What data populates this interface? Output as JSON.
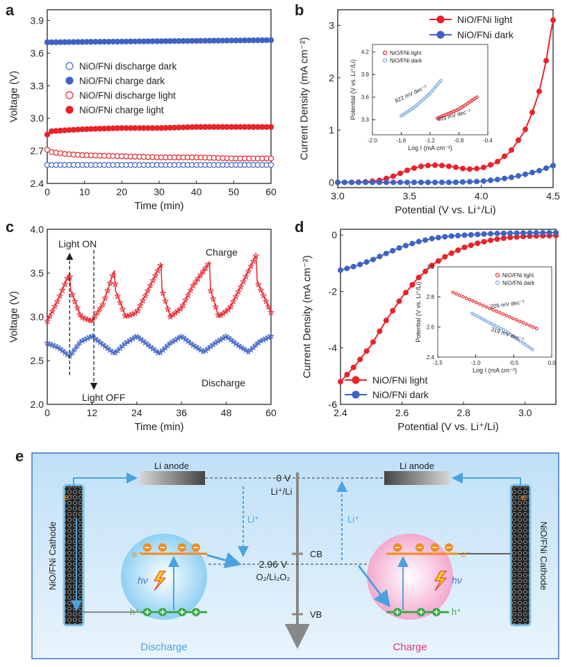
{
  "panels": {
    "a": "a",
    "b": "b",
    "c": "c",
    "d": "d",
    "e": "e"
  },
  "colors": {
    "red": "#e8232a",
    "blue": "#3f63c4",
    "lightblue": "#7aa6e0",
    "orange": "#f28a1e",
    "green": "#3aa64a",
    "cyan": "#4aa3df"
  },
  "chart_data": [
    {
      "panel": "a",
      "type": "scatter",
      "xlabel": "Time (min)",
      "ylabel": "Voltage (V)",
      "xlim": [
        0,
        60
      ],
      "ylim": [
        2.4,
        4.0
      ],
      "xticks": [
        "0",
        "10",
        "20",
        "30",
        "40",
        "50",
        "60"
      ],
      "yticks": [
        "2.4",
        "2.7",
        "3.0",
        "3.3",
        "3.6",
        "3.9"
      ],
      "legend": "center-left",
      "series": [
        {
          "name": "NiO/FNi discharge dark",
          "marker": "open",
          "color": "#3f63c4",
          "x": [
            0,
            60
          ],
          "y": [
            2.57,
            2.57
          ]
        },
        {
          "name": "NiO/FNi charge dark",
          "marker": "filled",
          "color": "#3f63c4",
          "x": [
            0,
            60
          ],
          "y": [
            3.7,
            3.72
          ]
        },
        {
          "name": "NiO/FNi discharge light",
          "marker": "open",
          "color": "#e8232a",
          "x": [
            0,
            1,
            5,
            10,
            20,
            30,
            40,
            50,
            60
          ],
          "y": [
            2.71,
            2.69,
            2.67,
            2.66,
            2.65,
            2.64,
            2.64,
            2.63,
            2.63
          ]
        },
        {
          "name": "NiO/FNi charge light",
          "marker": "filled",
          "color": "#e8232a",
          "x": [
            0,
            1,
            5,
            10,
            20,
            30,
            40,
            50,
            60
          ],
          "y": [
            2.85,
            2.88,
            2.89,
            2.9,
            2.91,
            2.91,
            2.92,
            2.92,
            2.92
          ]
        }
      ]
    },
    {
      "panel": "b",
      "type": "line",
      "xlabel": "Potential (V vs. Li⁺/Li)",
      "ylabel": "Current Density (mA cm⁻²)",
      "xlim": [
        3.0,
        4.5
      ],
      "ylim": [
        -0.1,
        3.3
      ],
      "xticks": [
        "3.0",
        "3.5",
        "4.0",
        "4.5"
      ],
      "yticks": [
        "0",
        "1",
        "2",
        "3"
      ],
      "legend": "top-right",
      "series": [
        {
          "name": "NiO/FNi light",
          "color": "#e8232a",
          "x": [
            3.0,
            3.1,
            3.2,
            3.3,
            3.4,
            3.5,
            3.6,
            3.7,
            3.8,
            3.9,
            4.0,
            4.1,
            4.2,
            4.3,
            4.35,
            4.4,
            4.45,
            4.48,
            4.5
          ],
          "y": [
            0.0,
            0.0,
            0.01,
            0.04,
            0.13,
            0.25,
            0.32,
            0.33,
            0.3,
            0.25,
            0.27,
            0.37,
            0.58,
            0.97,
            1.3,
            1.7,
            2.3,
            2.8,
            3.1
          ]
        },
        {
          "name": "NiO/FNi dark",
          "color": "#3f63c4",
          "x": [
            3.0,
            3.2,
            3.4,
            3.6,
            3.8,
            3.9,
            4.0,
            4.1,
            4.2,
            4.3,
            4.4,
            4.5
          ],
          "y": [
            0.0,
            0.0,
            0.0,
            0.0,
            0.0,
            0.01,
            0.02,
            0.05,
            0.09,
            0.15,
            0.22,
            0.32
          ]
        }
      ],
      "inset": {
        "xlabel": "Log I (mA cm⁻²)",
        "ylabel": "Potential (V vs. Li⁺/Li)",
        "xlim": [
          -2.0,
          -0.4
        ],
        "ylim": [
          3.1,
          4.3
        ],
        "xticks": [
          "-2.0",
          "-1.6",
          "-1.2",
          "-0.8",
          "-0.4"
        ],
        "yticks": [
          "3.3",
          "3.6",
          "3.9",
          "4.2"
        ],
        "legend": "top-left",
        "series": [
          {
            "name": "NiO/FNi light",
            "color": "#e8232a",
            "x": [
              -1.1,
              -0.8,
              -0.55
            ],
            "y": [
              3.32,
              3.44,
              3.6
            ]
          },
          {
            "name": "NiO/FNi dark",
            "color": "#7aa6e0",
            "x": [
              -1.6,
              -1.4,
              -1.2,
              -1.05
            ],
            "y": [
              3.35,
              3.48,
              3.65,
              3.82
            ]
          }
        ],
        "annotations": [
          "822 mV dec⁻¹",
          "403 mV dec⁻¹"
        ]
      }
    },
    {
      "panel": "c",
      "type": "line",
      "xlabel": "Time (min)",
      "ylabel": "Voltage (V)",
      "xlim": [
        0,
        60
      ],
      "ylim": [
        2.0,
        4.0
      ],
      "xticks": [
        "0",
        "12",
        "24",
        "36",
        "48",
        "60"
      ],
      "yticks": [
        "2.0",
        "2.5",
        "3.0",
        "3.5",
        "4.0"
      ],
      "annotations": [
        "Light ON",
        "Light OFF",
        "Charge",
        "Discharge"
      ],
      "series": [
        {
          "name": "Charge",
          "color": "#e8232a",
          "x": [
            0,
            3,
            6,
            6.3,
            9,
            12,
            15,
            18,
            18.3,
            21,
            24,
            27,
            30.5,
            30.8,
            33,
            36,
            39,
            43.5,
            43.8,
            46,
            49,
            52,
            56,
            56.3,
            60
          ],
          "y": [
            2.95,
            3.2,
            3.5,
            3.3,
            3.0,
            2.95,
            3.15,
            3.53,
            3.3,
            3.0,
            3.05,
            3.3,
            3.6,
            3.3,
            3.0,
            3.1,
            3.35,
            3.62,
            3.3,
            3.0,
            3.1,
            3.35,
            3.7,
            3.4,
            3.05
          ]
        },
        {
          "name": "Discharge",
          "color": "#3f63c4",
          "x": [
            0,
            3,
            6,
            9,
            12,
            15,
            18,
            21,
            24,
            27,
            30,
            33,
            36,
            39,
            42,
            45,
            48,
            51,
            54,
            57,
            60
          ],
          "y": [
            2.7,
            2.65,
            2.55,
            2.72,
            2.78,
            2.68,
            2.58,
            2.7,
            2.78,
            2.68,
            2.58,
            2.7,
            2.78,
            2.68,
            2.6,
            2.7,
            2.78,
            2.68,
            2.6,
            2.72,
            2.78
          ]
        }
      ]
    },
    {
      "panel": "d",
      "type": "line",
      "xlabel": "Potential (V vs. Li⁺/Li)",
      "ylabel": "Current Density (mA cm⁻²)",
      "xlim": [
        2.4,
        3.1
      ],
      "ylim": [
        -6,
        0.2
      ],
      "xticks": [
        "2.4",
        "2.6",
        "2.8",
        "3.0"
      ],
      "yticks": [
        "-6",
        "-4",
        "-2",
        "0"
      ],
      "legend": "bottom-left",
      "series": [
        {
          "name": "NiO/FNi light",
          "color": "#e8232a",
          "x": [
            2.4,
            2.45,
            2.5,
            2.55,
            2.6,
            2.65,
            2.7,
            2.75,
            2.8,
            2.85,
            2.9,
            2.95,
            3.0,
            3.05,
            3.1
          ],
          "y": [
            -5.2,
            -4.6,
            -3.9,
            -3.0,
            -2.2,
            -1.55,
            -1.05,
            -0.7,
            -0.45,
            -0.28,
            -0.16,
            -0.09,
            -0.05,
            -0.03,
            -0.02
          ]
        },
        {
          "name": "NiO/FNi dark",
          "color": "#3f63c4",
          "x": [
            2.4,
            2.45,
            2.5,
            2.55,
            2.6,
            2.65,
            2.7,
            2.75,
            2.8,
            2.9,
            3.0,
            3.1
          ],
          "y": [
            -1.25,
            -1.1,
            -0.9,
            -0.65,
            -0.42,
            -0.25,
            -0.12,
            -0.05,
            -0.01,
            0.05,
            0.07,
            0.08
          ]
        }
      ],
      "inset": {
        "xlabel": "Log I (mA cm⁻²)",
        "ylabel": "Potential (V vs. Li⁺/Li)",
        "xlim": [
          -1.5,
          0.0
        ],
        "ylim": [
          2.4,
          3.0
        ],
        "xticks": [
          "-1.5",
          "-1.0",
          "-0.5",
          "0.0"
        ],
        "yticks": [
          "2.4",
          "2.6",
          "2.8",
          "3.0"
        ],
        "legend": "top-right",
        "series": [
          {
            "name": "NiO/FNi light",
            "color": "#e8232a",
            "x": [
              -1.3,
              -0.8,
              -0.2
            ],
            "y": [
              2.83,
              2.72,
              2.59
            ]
          },
          {
            "name": "NiO/FNi dark",
            "color": "#7aa6e0",
            "x": [
              -1.05,
              -0.6,
              -0.25
            ],
            "y": [
              2.69,
              2.57,
              2.45
            ]
          }
        ],
        "annotations": [
          "205 mV dec⁻¹",
          "319 mV dec⁻¹"
        ]
      }
    }
  ],
  "diagram": {
    "li_anode": "Li anode",
    "zero_v": "0 V",
    "li_ref": "Li⁺/Li",
    "li_ion": "Li⁺",
    "cb": "CB",
    "vb": "VB",
    "potential": "2.96 V",
    "redox": "O₂/Li₂O₂",
    "cathode": "NiO/FNi Cathode",
    "electron": "e⁻",
    "hole": "h⁺",
    "photon": "hν",
    "discharge": "Discharge",
    "charge": "Charge"
  }
}
